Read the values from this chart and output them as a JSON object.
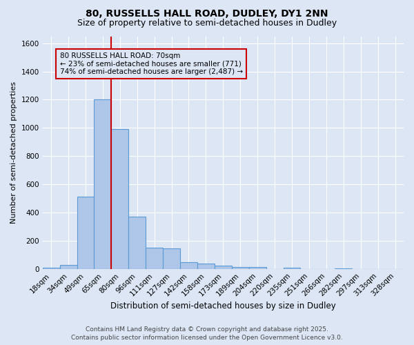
{
  "title_line1": "80, RUSSELLS HALL ROAD, DUDLEY, DY1 2NN",
  "title_line2": "Size of property relative to semi-detached houses in Dudley",
  "xlabel": "Distribution of semi-detached houses by size in Dudley",
  "ylabel": "Number of semi-detached properties",
  "footnote1": "Contains HM Land Registry data © Crown copyright and database right 2025.",
  "footnote2": "Contains public sector information licensed under the Open Government Licence v3.0.",
  "bar_labels": [
    "18sqm",
    "34sqm",
    "49sqm",
    "65sqm",
    "80sqm",
    "96sqm",
    "111sqm",
    "127sqm",
    "142sqm",
    "158sqm",
    "173sqm",
    "189sqm",
    "204sqm",
    "220sqm",
    "235sqm",
    "251sqm",
    "266sqm",
    "282sqm",
    "297sqm",
    "313sqm",
    "328sqm"
  ],
  "bar_values": [
    10,
    30,
    510,
    1200,
    990,
    370,
    150,
    145,
    50,
    40,
    25,
    15,
    15,
    0,
    10,
    0,
    0,
    5,
    0,
    0,
    0
  ],
  "bar_color": "#aec6e8",
  "bar_edgecolor": "#5b9bd5",
  "background_color": "#dce6f5",
  "grid_color": "#ffffff",
  "annotation_text": "80 RUSSELLS HALL ROAD: 70sqm\n← 23% of semi-detached houses are smaller (771)\n74% of semi-detached houses are larger (2,487) →",
  "annotation_box_edgecolor": "#cc0000",
  "vline_x": 3.5,
  "vline_color": "#cc0000",
  "ylim": [
    0,
    1650
  ],
  "yticks": [
    0,
    200,
    400,
    600,
    800,
    1000,
    1200,
    1400,
    1600
  ]
}
